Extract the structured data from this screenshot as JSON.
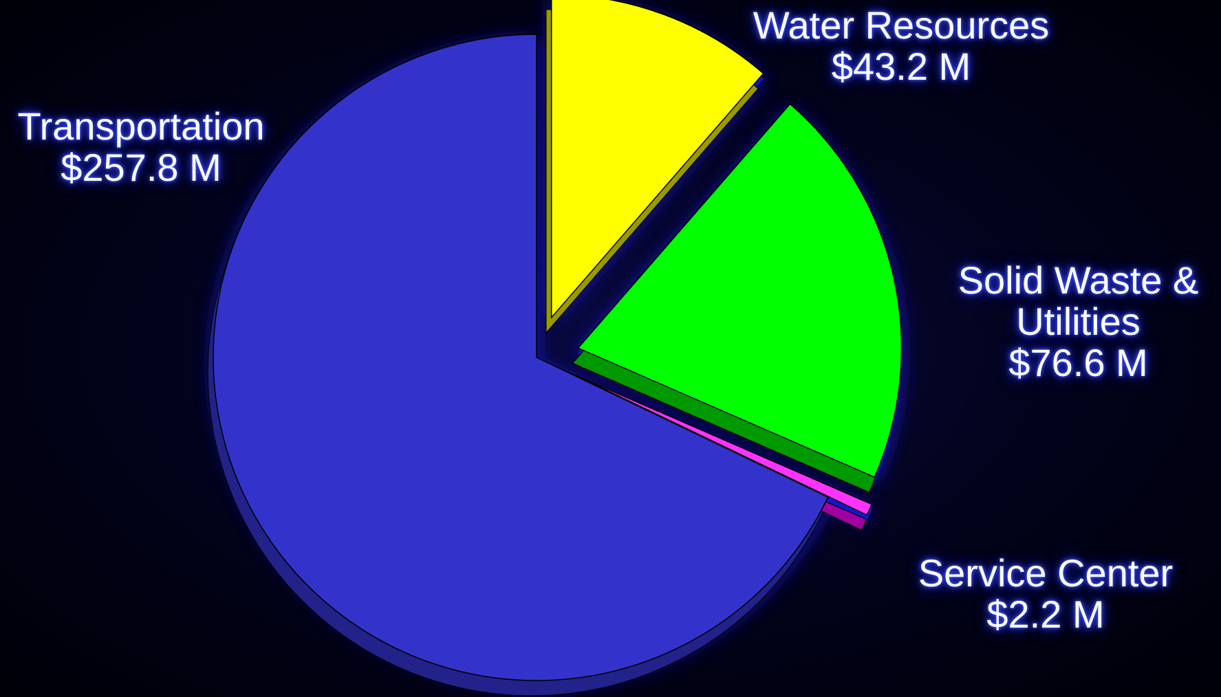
{
  "chart_data": {
    "type": "pie",
    "title": "",
    "unit": "$ M",
    "slices": [
      {
        "label": "Transportation",
        "value": 257.8,
        "display": "$257.8 M",
        "color": "#3333cc",
        "side": "#22228a"
      },
      {
        "label": "Water Resources",
        "value": 43.2,
        "display": "$43.2 M",
        "color": "#ffff00",
        "side": "#9a9a00"
      },
      {
        "label": "Solid Waste & Utilities",
        "value": 76.6,
        "display": "$76.6 M",
        "color": "#00ff00",
        "side": "#009a00"
      },
      {
        "label": "Service Center",
        "value": 2.2,
        "display": "$2.2 M",
        "color": "#ff33ff",
        "side": "#a000a0"
      }
    ],
    "legend": "none",
    "exploded": true
  },
  "labels": {
    "transportation": {
      "name": "Transportation",
      "value": "$257.8 M"
    },
    "water": {
      "name": "Water Resources",
      "value": "$43.2 M"
    },
    "solid_waste": {
      "line1": "Solid Waste &",
      "line2": "Utilities",
      "value": "$76.6 M"
    },
    "service": {
      "name": "Service Center",
      "value": "$2.2 M"
    }
  },
  "colors": {
    "background": "#000010",
    "glow": "#1a2aff",
    "text": "#ffffff"
  }
}
